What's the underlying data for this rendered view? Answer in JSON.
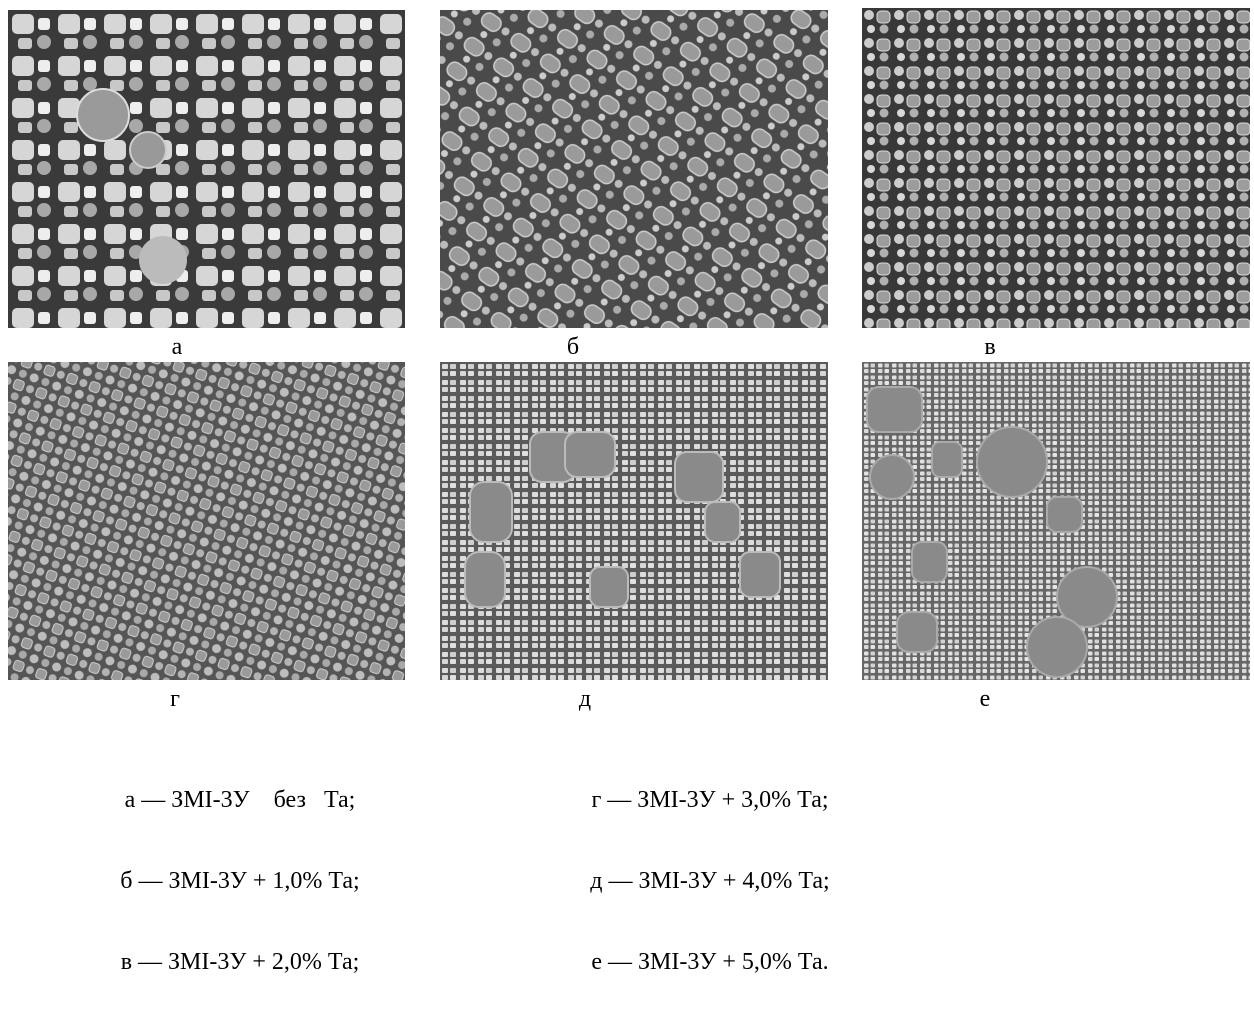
{
  "panels": [
    {
      "label": "а"
    },
    {
      "label": "б"
    },
    {
      "label": "в"
    },
    {
      "label": "г"
    },
    {
      "label": "д"
    },
    {
      "label": "е"
    }
  ],
  "legend": {
    "left": [
      "а — ЗМІ-3У    без   Та;",
      "б — ЗМІ-3У + 1,0% Та;",
      "в — ЗМІ-3У + 2,0% Та;"
    ],
    "right": [
      "г — ЗМІ-3У + 3,0% Та;",
      "д — ЗМІ-3У + 4,0% Та;",
      "е — ЗМІ-3У + 5,0% Та."
    ]
  }
}
